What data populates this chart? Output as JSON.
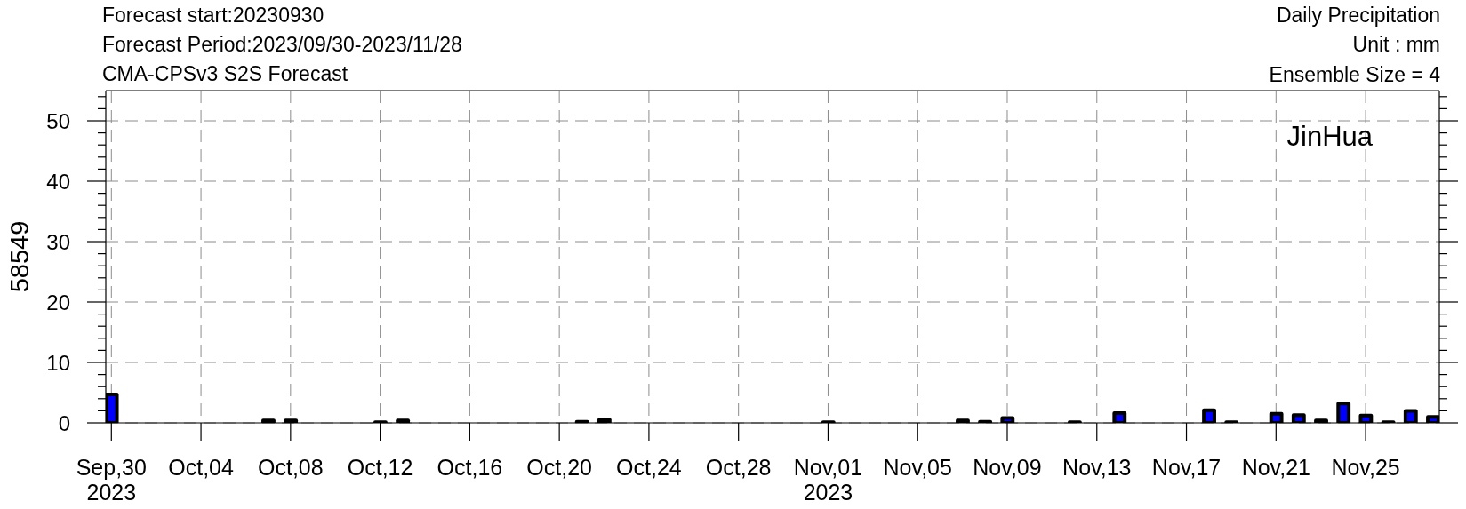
{
  "chart_data": {
    "type": "bar",
    "title": "Daily Precipitation",
    "subtitle": "Unit : mm",
    "ylabel": "58549",
    "annotations": [
      "Forecast start:20230930",
      "Forecast Period:2023/09/30-2023/11/28",
      "CMA-CPSv3 S2S Forecast",
      "Ensemble Size = 4",
      "JinHua"
    ],
    "x": [
      "2023-09-30",
      "2023-10-01",
      "2023-10-02",
      "2023-10-03",
      "2023-10-04",
      "2023-10-05",
      "2023-10-06",
      "2023-10-07",
      "2023-10-08",
      "2023-10-09",
      "2023-10-10",
      "2023-10-11",
      "2023-10-12",
      "2023-10-13",
      "2023-10-14",
      "2023-10-15",
      "2023-10-16",
      "2023-10-17",
      "2023-10-18",
      "2023-10-19",
      "2023-10-20",
      "2023-10-21",
      "2023-10-22",
      "2023-10-23",
      "2023-10-24",
      "2023-10-25",
      "2023-10-26",
      "2023-10-27",
      "2023-10-28",
      "2023-10-29",
      "2023-10-30",
      "2023-10-31",
      "2023-11-01",
      "2023-11-02",
      "2023-11-03",
      "2023-11-04",
      "2023-11-05",
      "2023-11-06",
      "2023-11-07",
      "2023-11-08",
      "2023-11-09",
      "2023-11-10",
      "2023-11-11",
      "2023-11-12",
      "2023-11-13",
      "2023-11-14",
      "2023-11-15",
      "2023-11-16",
      "2023-11-17",
      "2023-11-18",
      "2023-11-19",
      "2023-11-20",
      "2023-11-21",
      "2023-11-22",
      "2023-11-23",
      "2023-11-24",
      "2023-11-25",
      "2023-11-26",
      "2023-11-27",
      "2023-11-28"
    ],
    "values": [
      4.7,
      0,
      0,
      0,
      0,
      0,
      0,
      0.4,
      0.4,
      0,
      0,
      0,
      0.1,
      0.4,
      0,
      0,
      0,
      0,
      0,
      0,
      0,
      0.2,
      0.5,
      0,
      0,
      0,
      0,
      0,
      0,
      0,
      0,
      0,
      0.1,
      0,
      0,
      0,
      0,
      0,
      0.4,
      0.2,
      0.8,
      0,
      0,
      0.1,
      0,
      1.6,
      0,
      0,
      0,
      2.1,
      0.1,
      0,
      1.5,
      1.3,
      0.4,
      3.2,
      1.2,
      0.1,
      2.0,
      1.0
    ],
    "color": "#0000ff",
    "xlim": [
      "2023-09-29T18:00",
      "2023-11-28T07:00"
    ],
    "xticks": [
      {
        "value": "2023-09-30",
        "label": "Sep,30\n2023"
      },
      {
        "value": "2023-10-04",
        "label": "Oct,04"
      },
      {
        "value": "2023-10-08",
        "label": "Oct,08"
      },
      {
        "value": "2023-10-12",
        "label": "Oct,12"
      },
      {
        "value": "2023-10-16",
        "label": "Oct,16"
      },
      {
        "value": "2023-10-20",
        "label": "Oct,20"
      },
      {
        "value": "2023-10-24",
        "label": "Oct,24"
      },
      {
        "value": "2023-10-28",
        "label": "Oct,28"
      },
      {
        "value": "2023-11-01",
        "label": "Nov,01\n2023"
      },
      {
        "value": "2023-11-05",
        "label": "Nov,05"
      },
      {
        "value": "2023-11-09",
        "label": "Nov,09"
      },
      {
        "value": "2023-11-13",
        "label": "Nov,13"
      },
      {
        "value": "2023-11-17",
        "label": "Nov,17"
      },
      {
        "value": "2023-11-21",
        "label": "Nov,21"
      },
      {
        "value": "2023-11-25",
        "label": "Nov,25"
      }
    ],
    "ylim": [
      0,
      55
    ],
    "yticks": [
      0,
      {
        "value": 2,
        "label": null
      },
      {
        "value": 4,
        "label": null
      },
      {
        "value": 6,
        "label": null
      },
      {
        "value": 8,
        "label": null
      },
      10,
      {
        "value": 12,
        "label": null
      },
      {
        "value": 14,
        "label": null
      },
      {
        "value": 16,
        "label": null
      },
      {
        "value": 18,
        "label": null
      },
      20,
      {
        "value": 22,
        "label": null
      },
      {
        "value": 24,
        "label": null
      },
      {
        "value": 26,
        "label": null
      },
      {
        "value": 28,
        "label": null
      },
      30,
      {
        "value": 32,
        "label": null
      },
      {
        "value": 34,
        "label": null
      },
      {
        "value": 36,
        "label": null
      },
      {
        "value": 38,
        "label": null
      },
      40,
      {
        "value": 42,
        "label": null
      },
      {
        "value": 44,
        "label": null
      },
      {
        "value": 46,
        "label": null
      },
      {
        "value": 48,
        "label": null
      },
      50,
      {
        "value": 52,
        "label": null
      },
      {
        "value": 54,
        "label": null
      }
    ],
    "grid": true
  }
}
